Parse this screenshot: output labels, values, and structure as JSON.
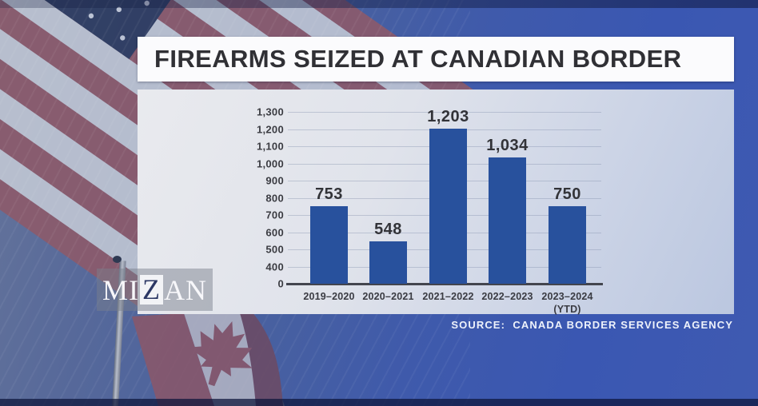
{
  "title": "FIREARMS SEIZED AT CANADIAN BORDER",
  "source_line": "SOURCE:  CANADA BORDER SERVICES AGENCY",
  "watermark": {
    "part1": "MI",
    "part2": "Z",
    "part3": "AN"
  },
  "background": {
    "left_flag": "united-states-flag",
    "bottom_flag": "canada-flag",
    "right_background_color": "#3a57b2"
  },
  "colors": {
    "bar": "#28519d",
    "panel_left": "#e9eaee",
    "panel_right": "#bbc7e0",
    "title_text": "#303035",
    "axis_text": "#3b3c42",
    "source_text": "#eef2fb"
  },
  "chart_data": {
    "type": "bar",
    "title": "FIREARMS SEIZED AT CANADIAN BORDER",
    "categories": [
      "2019–2020",
      "2020–2021",
      "2021–2022",
      "2022–2023",
      "2023–2024\n(YTD)"
    ],
    "values": [
      753,
      548,
      1203,
      1034,
      750
    ],
    "value_labels": [
      "753",
      "548",
      "1,203",
      "1,034",
      "750"
    ],
    "y_ticks": [
      0,
      400,
      500,
      600,
      700,
      800,
      900,
      1000,
      1100,
      1200,
      1300
    ],
    "y_tick_labels": [
      "0",
      "400",
      "500",
      "600",
      "700",
      "800",
      "900",
      "1,000",
      "1,100",
      "1,200",
      "1,300"
    ],
    "ylim": [
      0,
      1300
    ],
    "axis_note": "broken y-axis: first step spans 0-400, then 100 per step",
    "grid": true,
    "legend": "none",
    "xlabel": "",
    "ylabel": "",
    "source": "SOURCE:  CANADA BORDER SERVICES AGENCY"
  }
}
